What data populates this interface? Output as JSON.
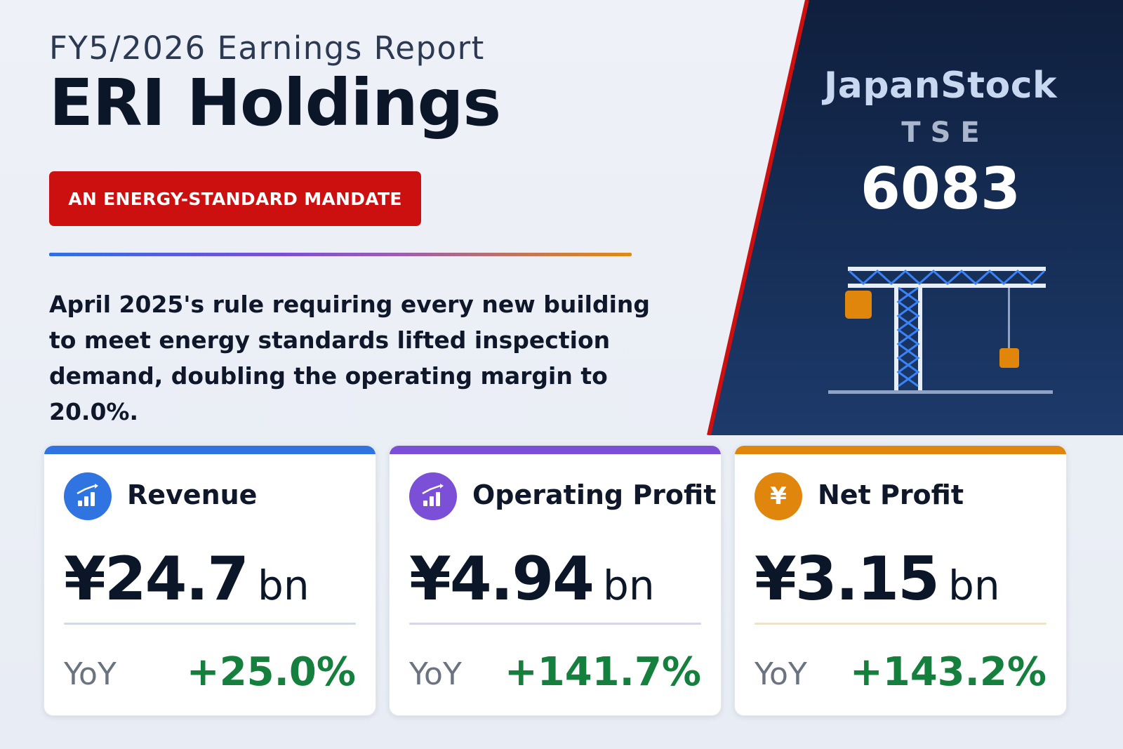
{
  "header": {
    "report_label": "FY5/2026 Earnings Report",
    "company_name": "ERI Holdings",
    "badge": "AN ENERGY-STANDARD MANDATE",
    "summary": "April 2025's rule requiring every new building to meet energy standards lifted inspection demand, doubling the operating margin to 20.0%."
  },
  "brand": {
    "name": "JapanStock",
    "exchange": "TSE",
    "code": "6083"
  },
  "colors": {
    "panel_dark": "#0f1f3d",
    "panel_mid": "#1c3a6b",
    "accent_red": "#cc0f0f",
    "revenue": "#2f74e0",
    "operating": "#7b4fd6",
    "net": "#e0860c",
    "positive": "#15803d"
  },
  "cards": [
    {
      "title": "Revenue",
      "icon": "bar-chart-up-icon",
      "value": "¥24.7",
      "unit": "bn",
      "yoy_label": "YoY",
      "yoy": "+25.0%"
    },
    {
      "title": "Operating Profit",
      "icon": "bar-chart-up-icon",
      "value": "¥4.94",
      "unit": "bn",
      "yoy_label": "YoY",
      "yoy": "+141.7%"
    },
    {
      "title": "Net Profit",
      "icon": "yen-icon",
      "icon_glyph": "¥",
      "value": "¥3.15",
      "unit": "bn",
      "yoy_label": "YoY",
      "yoy": "+143.2%"
    }
  ]
}
